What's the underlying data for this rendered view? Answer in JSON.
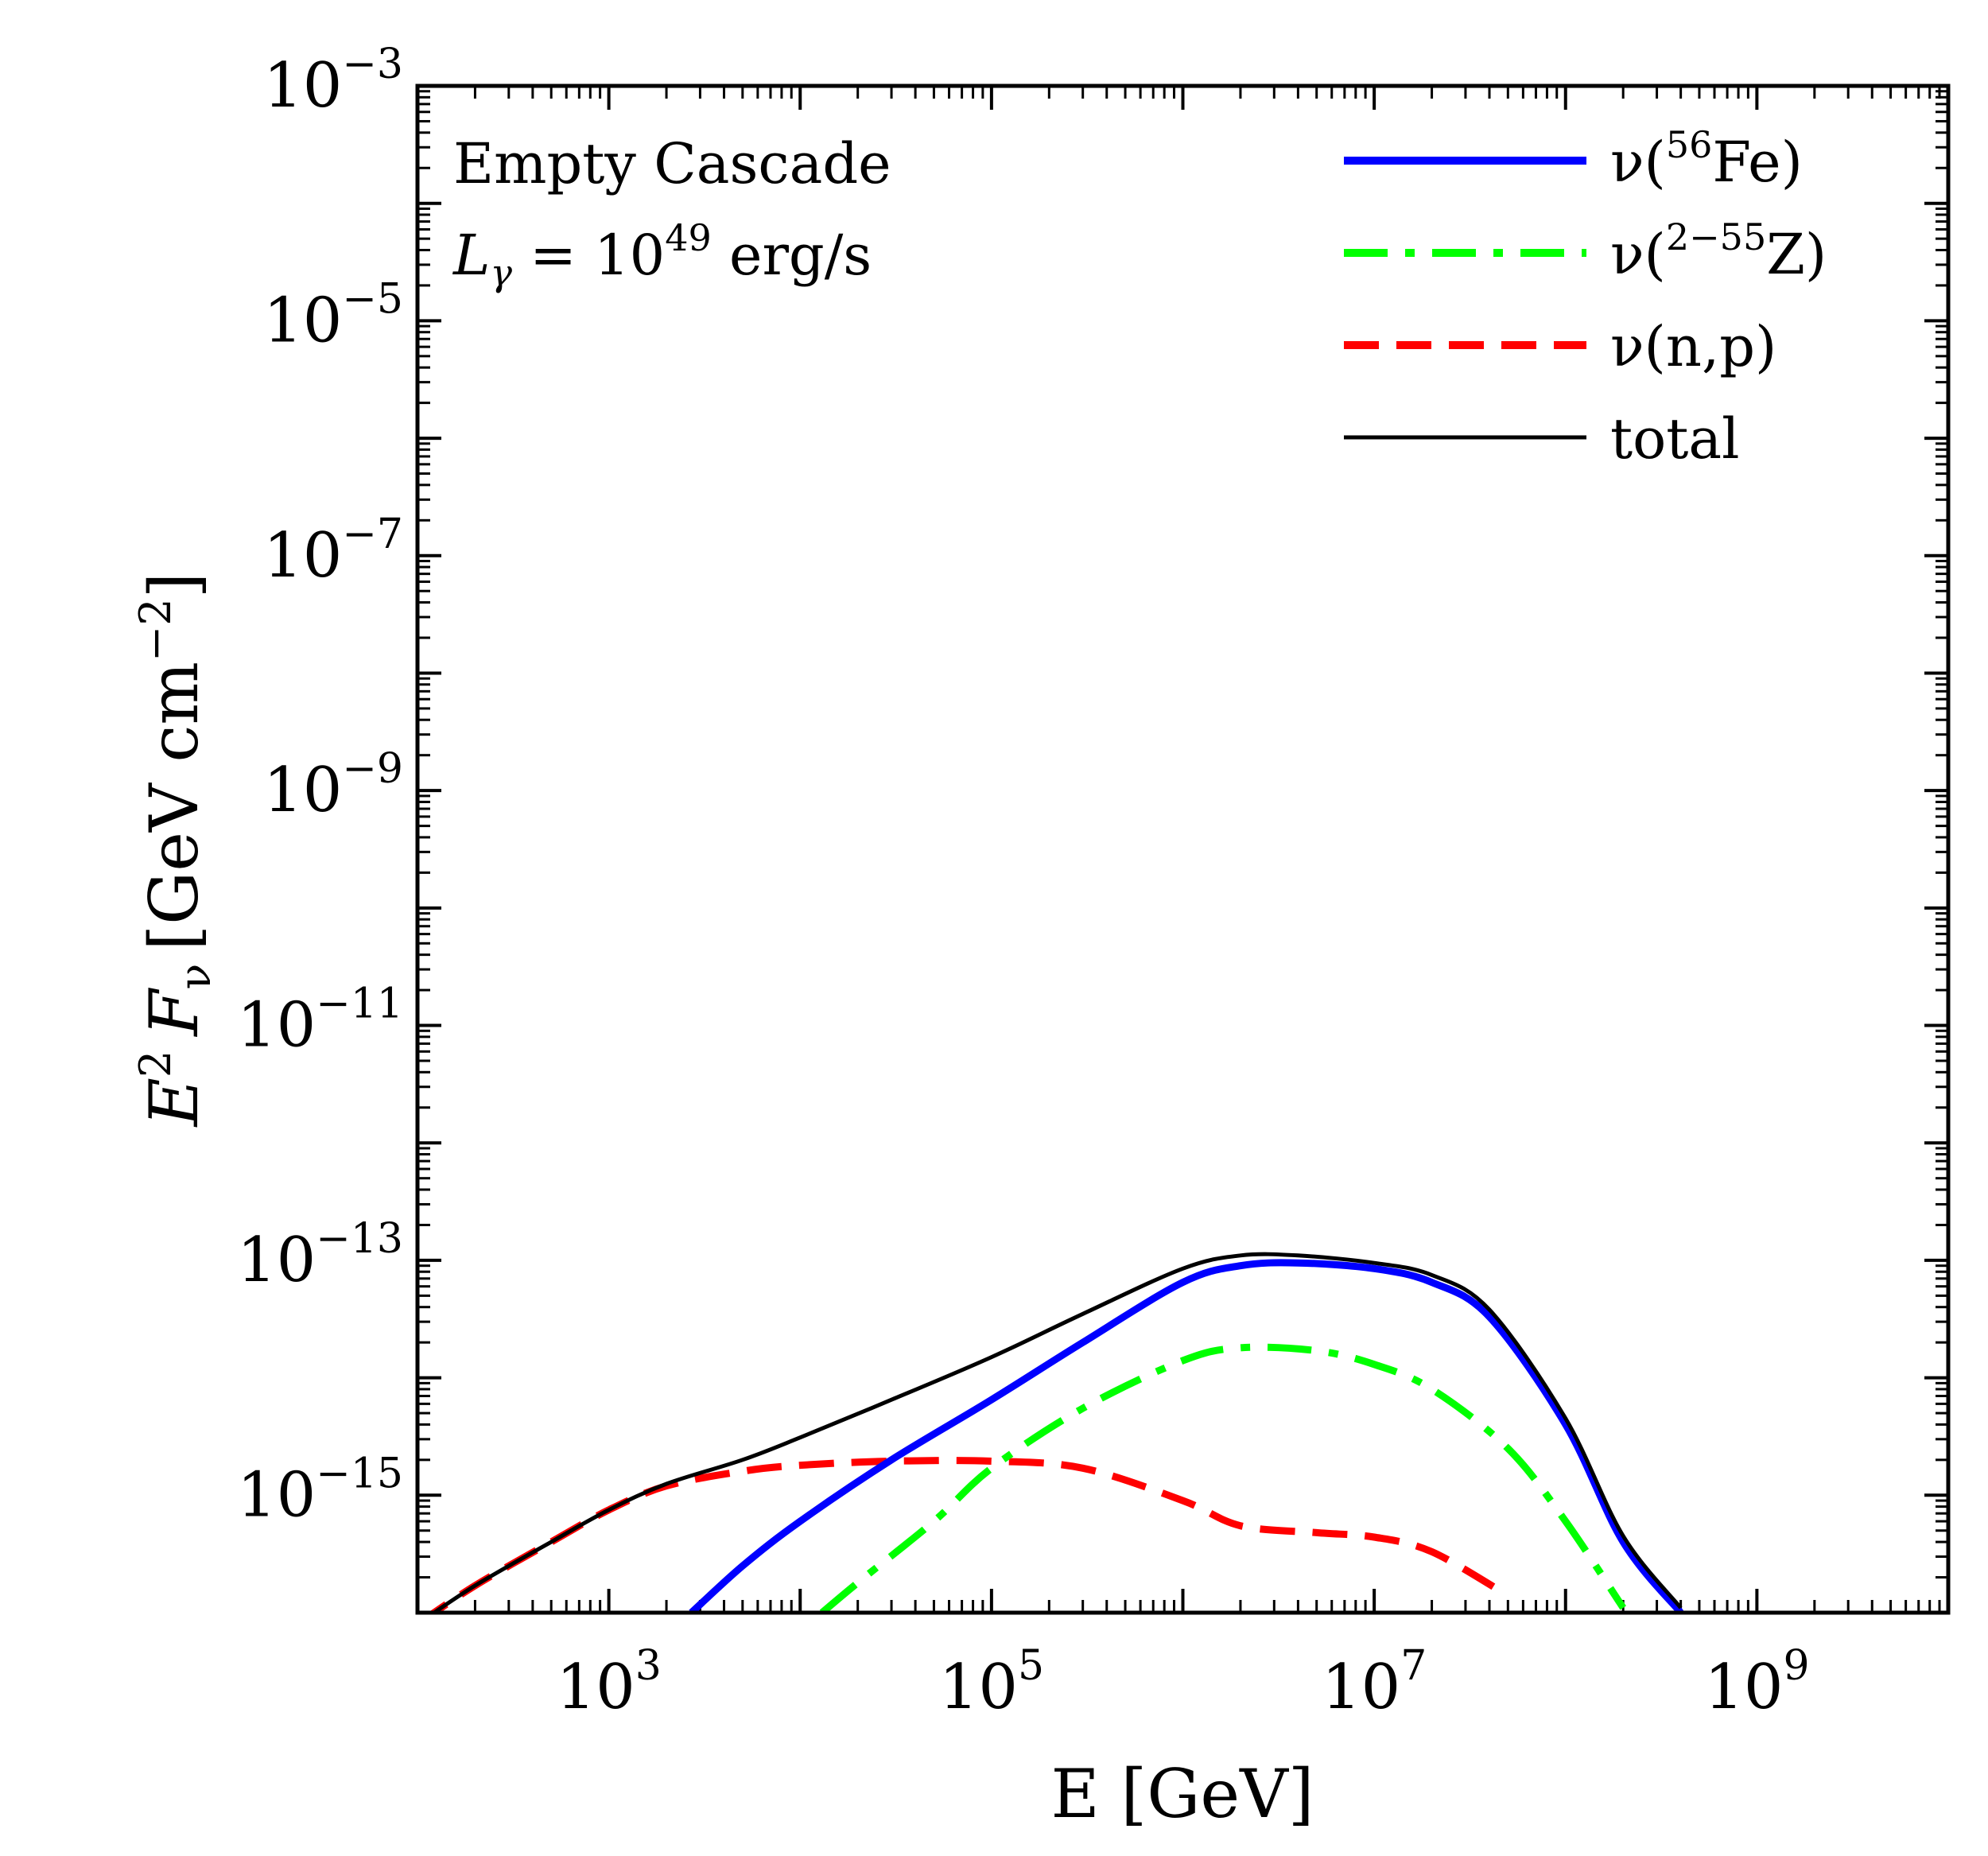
{
  "chart_data": {
    "type": "line",
    "xscale": "log",
    "yscale": "log",
    "xlim": [
      100,
      10000000000
    ],
    "ylim": [
      1e-16,
      0.001
    ],
    "xlabel": "E [GeV]",
    "ylabel": {
      "base": "E",
      "sup": "2",
      "var": "F",
      "sub": "ν",
      "unit_open": "[GeV cm",
      "unit_sup": "−2",
      "unit_close": "]"
    },
    "annotation": {
      "line1": "Empty Cascade",
      "line2_base": "L",
      "line2_sub": "γ",
      "line2_mid": " = 10",
      "line2_sup": "49",
      "line2_end": " erg/s"
    },
    "xticks": [
      {
        "base": "10",
        "exp": "3",
        "value": 1000
      },
      {
        "base": "10",
        "exp": "5",
        "value": 100000
      },
      {
        "base": "10",
        "exp": "7",
        "value": 10000000
      },
      {
        "base": "10",
        "exp": "9",
        "value": 1000000000
      }
    ],
    "yticks": [
      {
        "base": "10",
        "exp": "−3",
        "value": 0.001
      },
      {
        "base": "10",
        "exp": "−5",
        "value": 1e-05
      },
      {
        "base": "10",
        "exp": "−7",
        "value": 1e-07
      },
      {
        "base": "10",
        "exp": "−9",
        "value": 1e-09
      },
      {
        "base": "10",
        "exp": "−11",
        "value": 1e-11
      },
      {
        "base": "10",
        "exp": "−13",
        "value": 1e-13
      },
      {
        "base": "10",
        "exp": "−15",
        "value": 1e-15
      }
    ],
    "legend_position": "top-right",
    "series": [
      {
        "id": "fe",
        "name_pre": "ν(",
        "name_sup": "56",
        "name_post": "Fe)",
        "color": "#0000ff",
        "style": "solid",
        "width": 9,
        "x": [
          2700,
          5000,
          10000,
          30000,
          100000,
          300000,
          1000000,
          2000000,
          4000000,
          10000000,
          20000000,
          40000000,
          100000000,
          200000000,
          400000000
        ],
        "y": [
          1e-16,
          2.5e-16,
          6e-16,
          2e-15,
          6.5e-15,
          2e-14,
          6.5e-14,
          9e-14,
          9.5e-14,
          8.5e-14,
          6.5e-14,
          3.3e-14,
          4e-15,
          4e-16,
          1e-16
        ]
      },
      {
        "id": "z",
        "name_pre": "ν(",
        "name_sup": "2−55",
        "name_post": "Z)",
        "color": "#00ff00",
        "style": "dashdot",
        "width": 9,
        "x": [
          13000,
          20000,
          50000,
          100000,
          300000,
          1000000,
          2000000,
          5000000,
          10000000,
          20000000,
          50000000,
          100000000,
          200000000
        ],
        "y": [
          1e-16,
          1.8e-16,
          6e-16,
          1.7e-15,
          5.5e-15,
          1.4e-14,
          1.8e-14,
          1.7e-14,
          1.3e-14,
          8e-15,
          2.5e-15,
          6e-16,
          1.1e-16
        ]
      },
      {
        "id": "np",
        "name_pre": "ν(n,p)",
        "name_sup": "",
        "name_post": "",
        "color": "#ff0000",
        "style": "dashed",
        "width": 9,
        "x": [
          100,
          200,
          500,
          1000,
          2000,
          5000,
          10000,
          30000,
          100000,
          300000,
          1000000,
          2000000,
          5000000,
          10000000,
          20000000,
          50000000
        ],
        "y": [
          8e-17,
          1.7e-16,
          4e-16,
          7.5e-16,
          1.2e-15,
          1.6e-15,
          1.8e-15,
          1.95e-15,
          1.95e-15,
          1.7e-15,
          9e-16,
          5.5e-16,
          4.8e-16,
          4.4e-16,
          3.3e-16,
          1.4e-16
        ]
      },
      {
        "id": "total",
        "name_pre": "total",
        "name_sup": "",
        "name_post": "",
        "color": "#000000",
        "style": "solid",
        "width": 5,
        "x": [
          100,
          200,
          500,
          1000,
          2000,
          5000,
          10000,
          30000,
          100000,
          300000,
          1000000,
          2000000,
          4000000,
          10000000,
          20000000,
          40000000,
          100000000,
          200000000,
          400000000
        ],
        "y": [
          8e-17,
          1.7e-16,
          4e-16,
          7.5e-16,
          1.25e-15,
          2e-15,
          3.1e-15,
          6.5e-15,
          1.5e-14,
          3.5e-14,
          8.5e-14,
          1.1e-13,
          1.1e-13,
          9.5e-14,
          7.5e-14,
          3.8e-14,
          4.5e-15,
          4.5e-16,
          1.1e-16
        ]
      }
    ]
  }
}
